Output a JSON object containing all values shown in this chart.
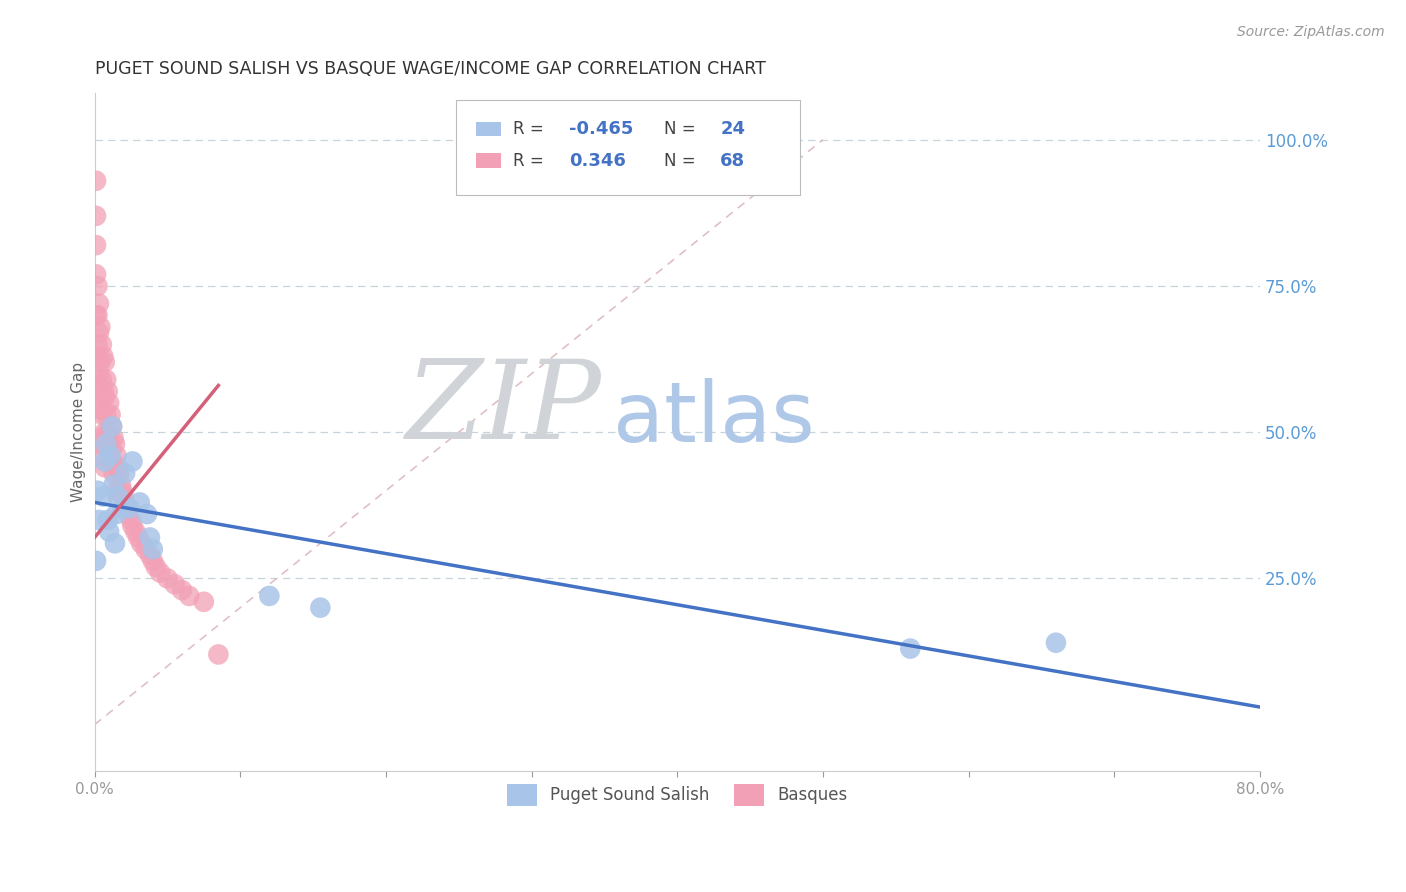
{
  "title": "PUGET SOUND SALISH VS BASQUE WAGE/INCOME GAP CORRELATION CHART",
  "source": "Source: ZipAtlas.com",
  "ylabel": "Wage/Income Gap",
  "right_yticks": [
    "100.0%",
    "75.0%",
    "50.0%",
    "25.0%"
  ],
  "right_ytick_vals": [
    1.0,
    0.75,
    0.5,
    0.25
  ],
  "legend_label_blue": "Puget Sound Salish",
  "legend_label_pink": "Basques",
  "blue_scatter_color": "#a8c4e8",
  "pink_scatter_color": "#f2a0b5",
  "blue_line_color": "#4472c4",
  "pink_line_color": "#d4607a",
  "zip_watermark_color": "#d0d4d8",
  "atlas_watermark_color": "#b0c8e8",
  "background_color": "#ffffff",
  "grid_color": "#c8d4dc",
  "xlim": [
    0.0,
    0.8
  ],
  "ylim": [
    -0.08,
    1.08
  ],
  "blue_x": [
    0.002,
    0.003,
    0.001,
    0.008,
    0.007,
    0.006,
    0.009,
    0.012,
    0.011,
    0.013,
    0.01,
    0.016,
    0.015,
    0.014,
    0.021,
    0.019,
    0.026,
    0.024,
    0.031,
    0.036,
    0.038,
    0.04,
    0.12,
    0.155,
    0.56,
    0.66
  ],
  "blue_y": [
    0.4,
    0.35,
    0.28,
    0.48,
    0.45,
    0.39,
    0.35,
    0.51,
    0.46,
    0.41,
    0.33,
    0.39,
    0.36,
    0.31,
    0.43,
    0.37,
    0.45,
    0.37,
    0.38,
    0.36,
    0.32,
    0.3,
    0.22,
    0.2,
    0.13,
    0.14
  ],
  "pink_x": [
    0.001,
    0.001,
    0.001,
    0.001,
    0.001,
    0.001,
    0.002,
    0.002,
    0.002,
    0.002,
    0.003,
    0.003,
    0.003,
    0.003,
    0.003,
    0.004,
    0.004,
    0.004,
    0.004,
    0.005,
    0.005,
    0.005,
    0.005,
    0.006,
    0.006,
    0.007,
    0.007,
    0.007,
    0.007,
    0.008,
    0.008,
    0.009,
    0.009,
    0.01,
    0.01,
    0.011,
    0.011,
    0.012,
    0.012,
    0.013,
    0.013,
    0.014,
    0.015,
    0.015,
    0.016,
    0.017,
    0.018,
    0.019,
    0.02,
    0.021,
    0.022,
    0.023,
    0.025,
    0.026,
    0.028,
    0.03,
    0.032,
    0.035,
    0.038,
    0.04,
    0.042,
    0.045,
    0.05,
    0.055,
    0.06,
    0.065,
    0.075,
    0.085
  ],
  "pink_y": [
    0.93,
    0.87,
    0.82,
    0.77,
    0.7,
    0.63,
    0.75,
    0.7,
    0.65,
    0.58,
    0.72,
    0.67,
    0.6,
    0.54,
    0.48,
    0.68,
    0.62,
    0.55,
    0.49,
    0.65,
    0.59,
    0.53,
    0.46,
    0.63,
    0.57,
    0.62,
    0.56,
    0.5,
    0.44,
    0.59,
    0.53,
    0.57,
    0.5,
    0.55,
    0.48,
    0.53,
    0.47,
    0.51,
    0.45,
    0.49,
    0.43,
    0.48,
    0.46,
    0.4,
    0.44,
    0.43,
    0.41,
    0.4,
    0.39,
    0.38,
    0.37,
    0.36,
    0.35,
    0.34,
    0.33,
    0.32,
    0.31,
    0.3,
    0.29,
    0.28,
    0.27,
    0.26,
    0.25,
    0.24,
    0.23,
    0.22,
    0.21,
    0.12
  ],
  "blue_line_x": [
    0.0,
    0.8
  ],
  "blue_line_y": [
    0.38,
    0.03
  ],
  "pink_line_x": [
    0.0,
    0.085
  ],
  "pink_line_y": [
    0.32,
    0.58
  ],
  "diag_line_x": [
    0.0,
    0.5
  ],
  "diag_line_y": [
    0.0,
    1.0
  ]
}
